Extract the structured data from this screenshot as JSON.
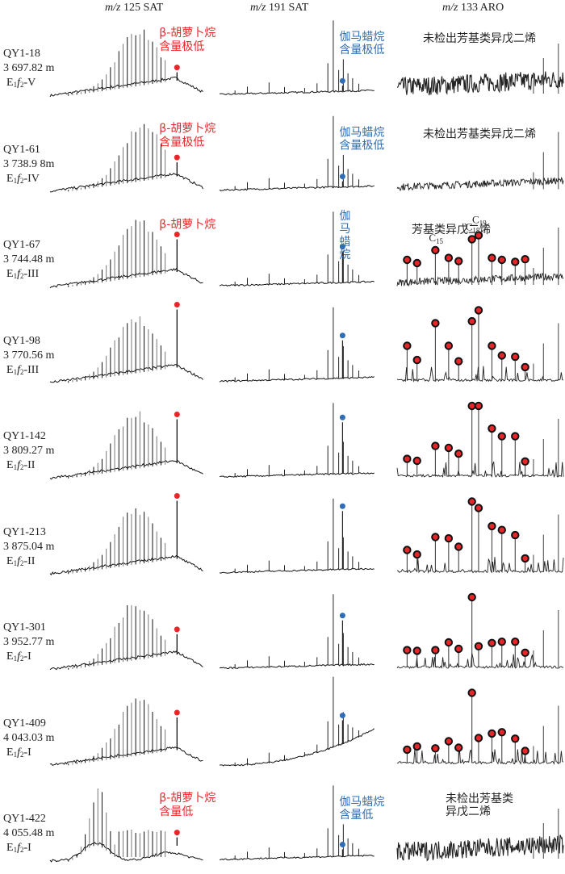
{
  "chart_data": {
    "type": "line",
    "title": "",
    "description": "Mass chromatograms of saturate (m/z 125, m/z 191) and aromatic (m/z 133) fractions for nine samples",
    "columns": [
      {
        "id": "m125",
        "prefix": "m/z",
        "label": "125 SAT",
        "marker": "β-胡萝卜烷 (beta-carotane)",
        "marker_color": "#e8262a"
      },
      {
        "id": "m191",
        "prefix": "m/z",
        "label": "191 SAT",
        "marker": "伽马蜡烷 (gammacerane)",
        "marker_color": "#2f6db5"
      },
      {
        "id": "m133",
        "prefix": "m/z",
        "label": "133 ARO",
        "marker": "芳基类异戊二烯 (aryl isoprenoids)",
        "marker_color": "#e8262a"
      }
    ],
    "samples": [
      {
        "id": "QY1-18",
        "depth": "3 697.82 m",
        "formation_main": "E",
        "formation_sub1": "1",
        "formation_f": "f",
        "formation_sub2": "2",
        "member": "-V",
        "m125": {
          "annotation": [
            "β-胡萝卜烷",
            "含量极低"
          ],
          "marker_rel": 0.12,
          "hump_center": 0.62,
          "profile": "normal"
        },
        "m191": {
          "annotation": [
            "伽马蜡烷",
            "含量极低"
          ],
          "marker_rel": 0.08,
          "tallest_rel": 1.0
        },
        "m133": {
          "annotation": [
            "未检出芳基类异戊二烯"
          ],
          "aryl_markers": [],
          "style": "noisy"
        }
      },
      {
        "id": "QY1-61",
        "depth": "3 738.9 8m",
        "formation_main": "E",
        "formation_sub1": "1",
        "formation_f": "f",
        "formation_sub2": "2",
        "member": "-IV",
        "m125": {
          "annotation": [
            "β-胡萝卜烷",
            "含量极低"
          ],
          "marker_rel": 0.22,
          "hump_center": 0.65,
          "profile": "normal"
        },
        "m191": {
          "annotation": [
            "伽马蜡烷",
            "含量极低"
          ],
          "marker_rel": 0.08,
          "tallest_rel": 1.0
        },
        "m133": {
          "annotation": [
            "未检出芳基类异戊二烯"
          ],
          "aryl_markers": [],
          "style": "noisy-low"
        }
      },
      {
        "id": "QY1-67",
        "depth": "3 744.48 m",
        "formation_main": "E",
        "formation_sub1": "1",
        "formation_f": "f",
        "formation_sub2": "2",
        "member": "-III",
        "m125": {
          "annotation": [
            "β-胡萝卜烷"
          ],
          "marker_rel": 0.55,
          "hump_center": 0.62,
          "profile": "normal"
        },
        "m191": {
          "annotation": [
            "伽马蜡烷"
          ],
          "marker_rel": 0.45,
          "tallest_rel": 1.0
        },
        "m133": {
          "annotation": [
            "芳基类异戊二烯"
          ],
          "carbon_labels": [
            "C15",
            "C18",
            "C19"
          ],
          "aryl_markers": [
            0.3,
            0.25,
            0.45,
            0.33,
            0.28,
            0.62,
            0.68,
            0.33,
            0.3,
            0.27,
            0.31
          ],
          "style": "noisy-low"
        }
      },
      {
        "id": "QY1-98",
        "depth": "3 770.56 m",
        "formation_main": "E",
        "formation_sub1": "1",
        "formation_f": "f",
        "formation_sub2": "2",
        "member": "-III",
        "m125": {
          "annotation": [],
          "marker_rel": 1.0,
          "hump_center": 0.6,
          "profile": "normal"
        },
        "m191": {
          "annotation": [],
          "marker_rel": 0.55,
          "tallest_rel": 1.0
        },
        "m133": {
          "annotation": [],
          "aryl_markers": [
            0.45,
            0.23,
            0.8,
            0.45,
            0.21,
            0.83,
            1.0,
            0.45,
            0.3,
            0.28,
            0.12
          ],
          "style": "clean"
        }
      },
      {
        "id": "QY1-142",
        "depth": "3 809.27 m",
        "formation_main": "E",
        "formation_sub1": "1",
        "formation_f": "f",
        "formation_sub2": "2",
        "member": "-II",
        "m125": {
          "annotation": [],
          "marker_rel": 0.75,
          "hump_center": 0.6,
          "profile": "normal"
        },
        "m191": {
          "annotation": [],
          "marker_rel": 0.75,
          "tallest_rel": 1.0
        },
        "m133": {
          "annotation": [],
          "aryl_markers": [
            0.18,
            0.15,
            0.38,
            0.35,
            0.26,
            1.0,
            1.0,
            0.65,
            0.53,
            0.53,
            0.14
          ],
          "style": "clean"
        }
      },
      {
        "id": "QY1-213",
        "depth": "3 875.04 m",
        "formation_main": "E",
        "formation_sub1": "1",
        "formation_f": "f",
        "formation_sub2": "2",
        "member": "-II",
        "m125": {
          "annotation": [],
          "marker_rel": 1.0,
          "hump_center": 0.6,
          "profile": "normal"
        },
        "m191": {
          "annotation": [],
          "marker_rel": 0.85,
          "tallest_rel": 1.0
        },
        "m133": {
          "annotation": [],
          "aryl_markers": [
            0.25,
            0.18,
            0.45,
            0.43,
            0.3,
            1.0,
            0.9,
            0.62,
            0.56,
            0.48,
            0.12
          ],
          "style": "clean"
        }
      },
      {
        "id": "QY1-301",
        "depth": "3 952.77 m",
        "formation_main": "E",
        "formation_sub1": "1",
        "formation_f": "f",
        "formation_sub2": "2",
        "member": "-I",
        "m125": {
          "annotation": [],
          "marker_rel": 0.33,
          "hump_center": 0.6,
          "profile": "normal"
        },
        "m191": {
          "annotation": [],
          "marker_rel": 0.65,
          "tallest_rel": 1.0
        },
        "m133": {
          "annotation": [],
          "aryl_markers": [
            0.18,
            0.17,
            0.18,
            0.3,
            0.2,
            1.0,
            0.24,
            0.29,
            0.31,
            0.31,
            0.14
          ],
          "style": "clean"
        }
      },
      {
        "id": "QY1-409",
        "depth": "4 043.03 m",
        "formation_main": "E",
        "formation_sub1": "1",
        "formation_f": "f",
        "formation_sub2": "2",
        "member": "-I",
        "m125": {
          "annotation": [],
          "marker_rel": 0.55,
          "hump_center": 0.62,
          "profile": "normal"
        },
        "m191": {
          "annotation": [],
          "marker_rel": 0.35,
          "tallest_rel": 1.0,
          "rising_baseline": true
        },
        "m133": {
          "annotation": [],
          "aryl_markers": [
            0.12,
            0.17,
            0.14,
            0.25,
            0.15,
            1.0,
            0.3,
            0.37,
            0.39,
            0.29,
            0.1
          ],
          "style": "clean"
        }
      },
      {
        "id": "QY1-422",
        "depth": "4 055.48 m",
        "formation_main": "E",
        "formation_sub1": "1",
        "formation_f": "f",
        "formation_sub2": "2",
        "member": "-I",
        "m125": {
          "annotation": [
            "β-胡萝卜烷",
            "含量低"
          ],
          "marker_rel": 0.12,
          "hump_center": 0.35,
          "profile": "early"
        },
        "m191": {
          "annotation": [
            "伽马蜡烷",
            "含量低"
          ],
          "marker_rel": 0.1,
          "tallest_rel": 1.0
        },
        "m133": {
          "annotation": [
            "未检出芳基类",
            "异戊二烯"
          ],
          "aryl_markers": [],
          "style": "noisy"
        }
      }
    ]
  }
}
